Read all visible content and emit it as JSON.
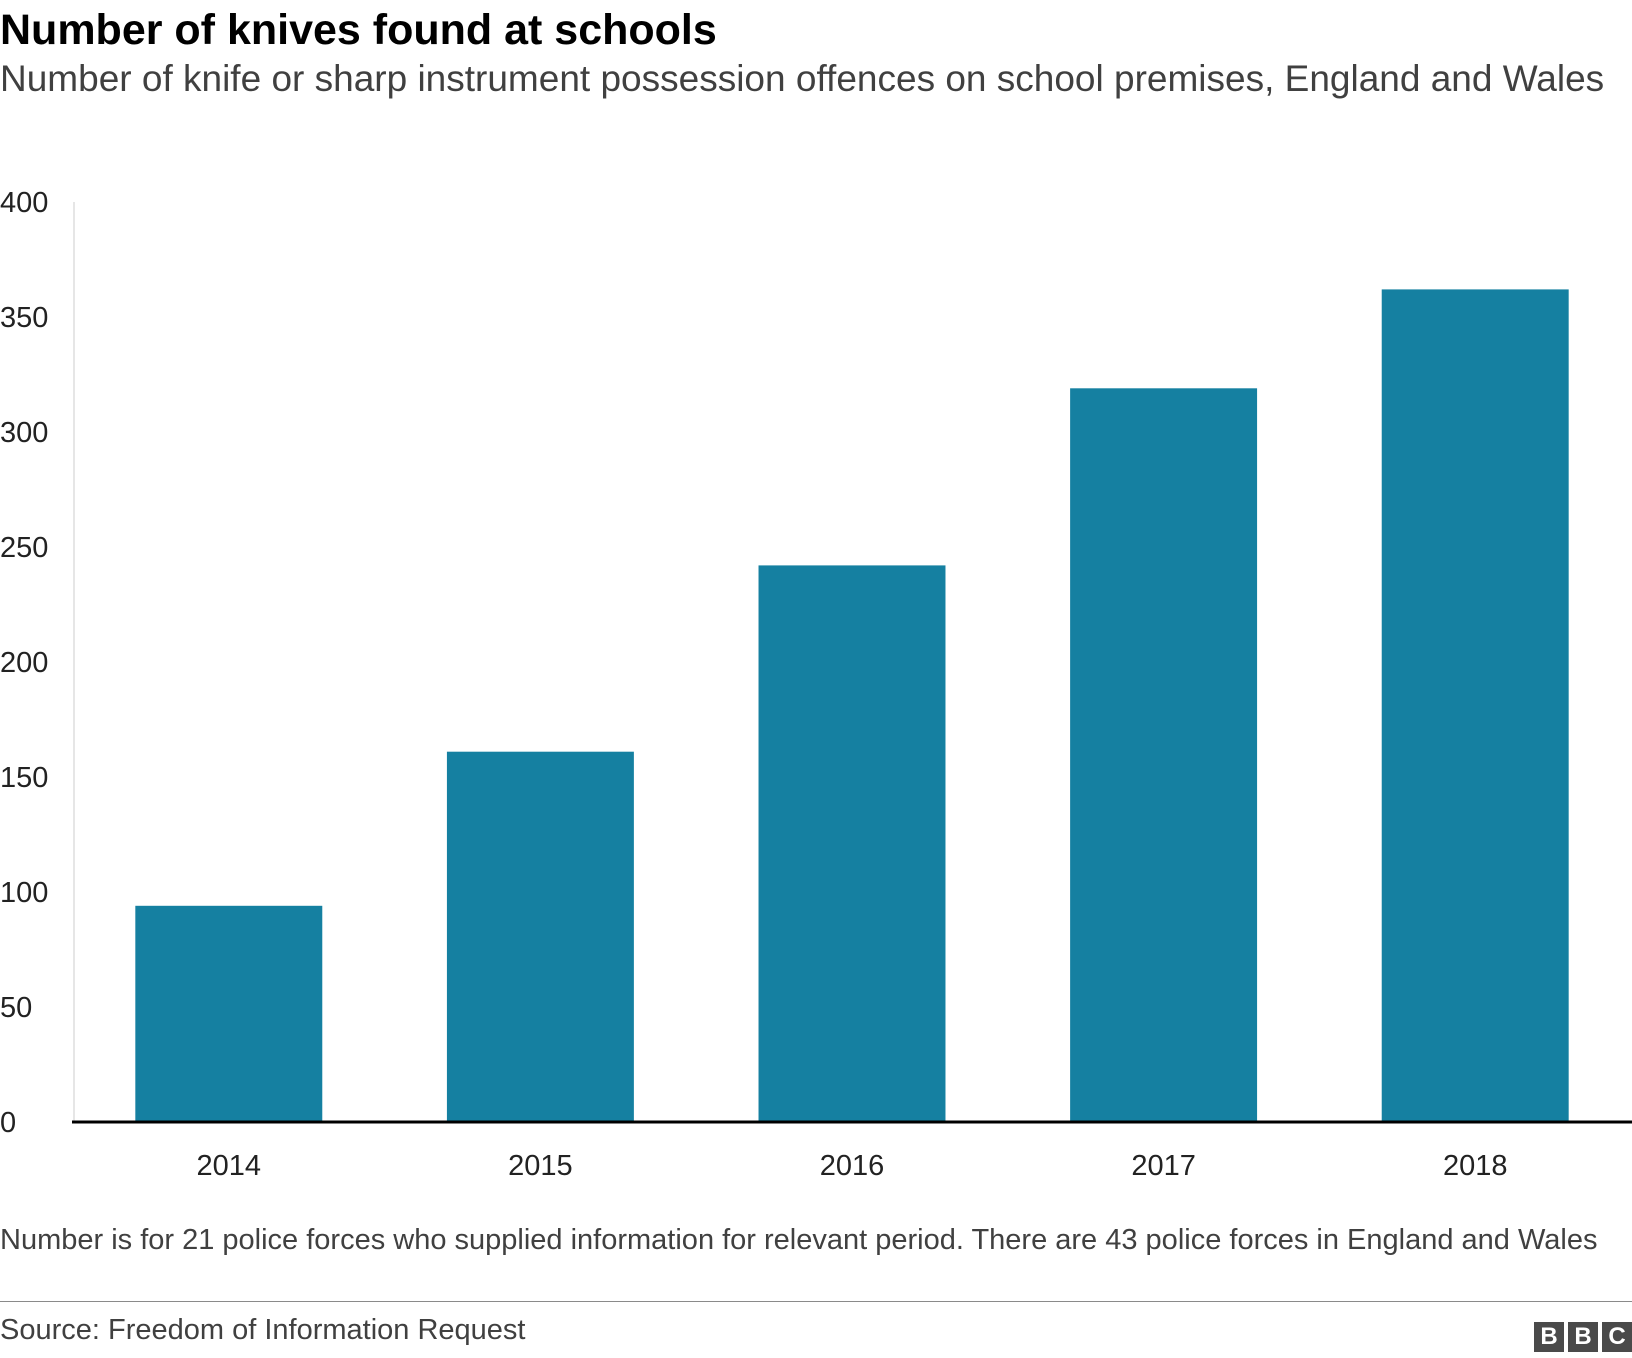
{
  "header": {
    "title": "Number of knives found at schools",
    "subtitle": "Number of knife or sharp instrument possession offences on school premises, England and Wales"
  },
  "chart_data": {
    "type": "bar",
    "title": "Number of knives found at schools",
    "subtitle": "Number of knife or sharp instrument possession offences on school premises, England and Wales",
    "categories": [
      "2014",
      "2015",
      "2016",
      "2017",
      "2018"
    ],
    "values": [
      94,
      161,
      242,
      319,
      362
    ],
    "ylim": [
      0,
      400
    ],
    "yticks": [
      0,
      50,
      100,
      150,
      200,
      250,
      300,
      350,
      400
    ],
    "xlabel": "",
    "ylabel": "",
    "grid": false,
    "bar_color": "#1580a1"
  },
  "footer": {
    "note": "Number is for 21 police forces who supplied information for relevant period. There are 43 police forces in England and Wales",
    "source": "Source: Freedom of Information Request",
    "logo_letters": [
      "B",
      "B",
      "C"
    ]
  }
}
